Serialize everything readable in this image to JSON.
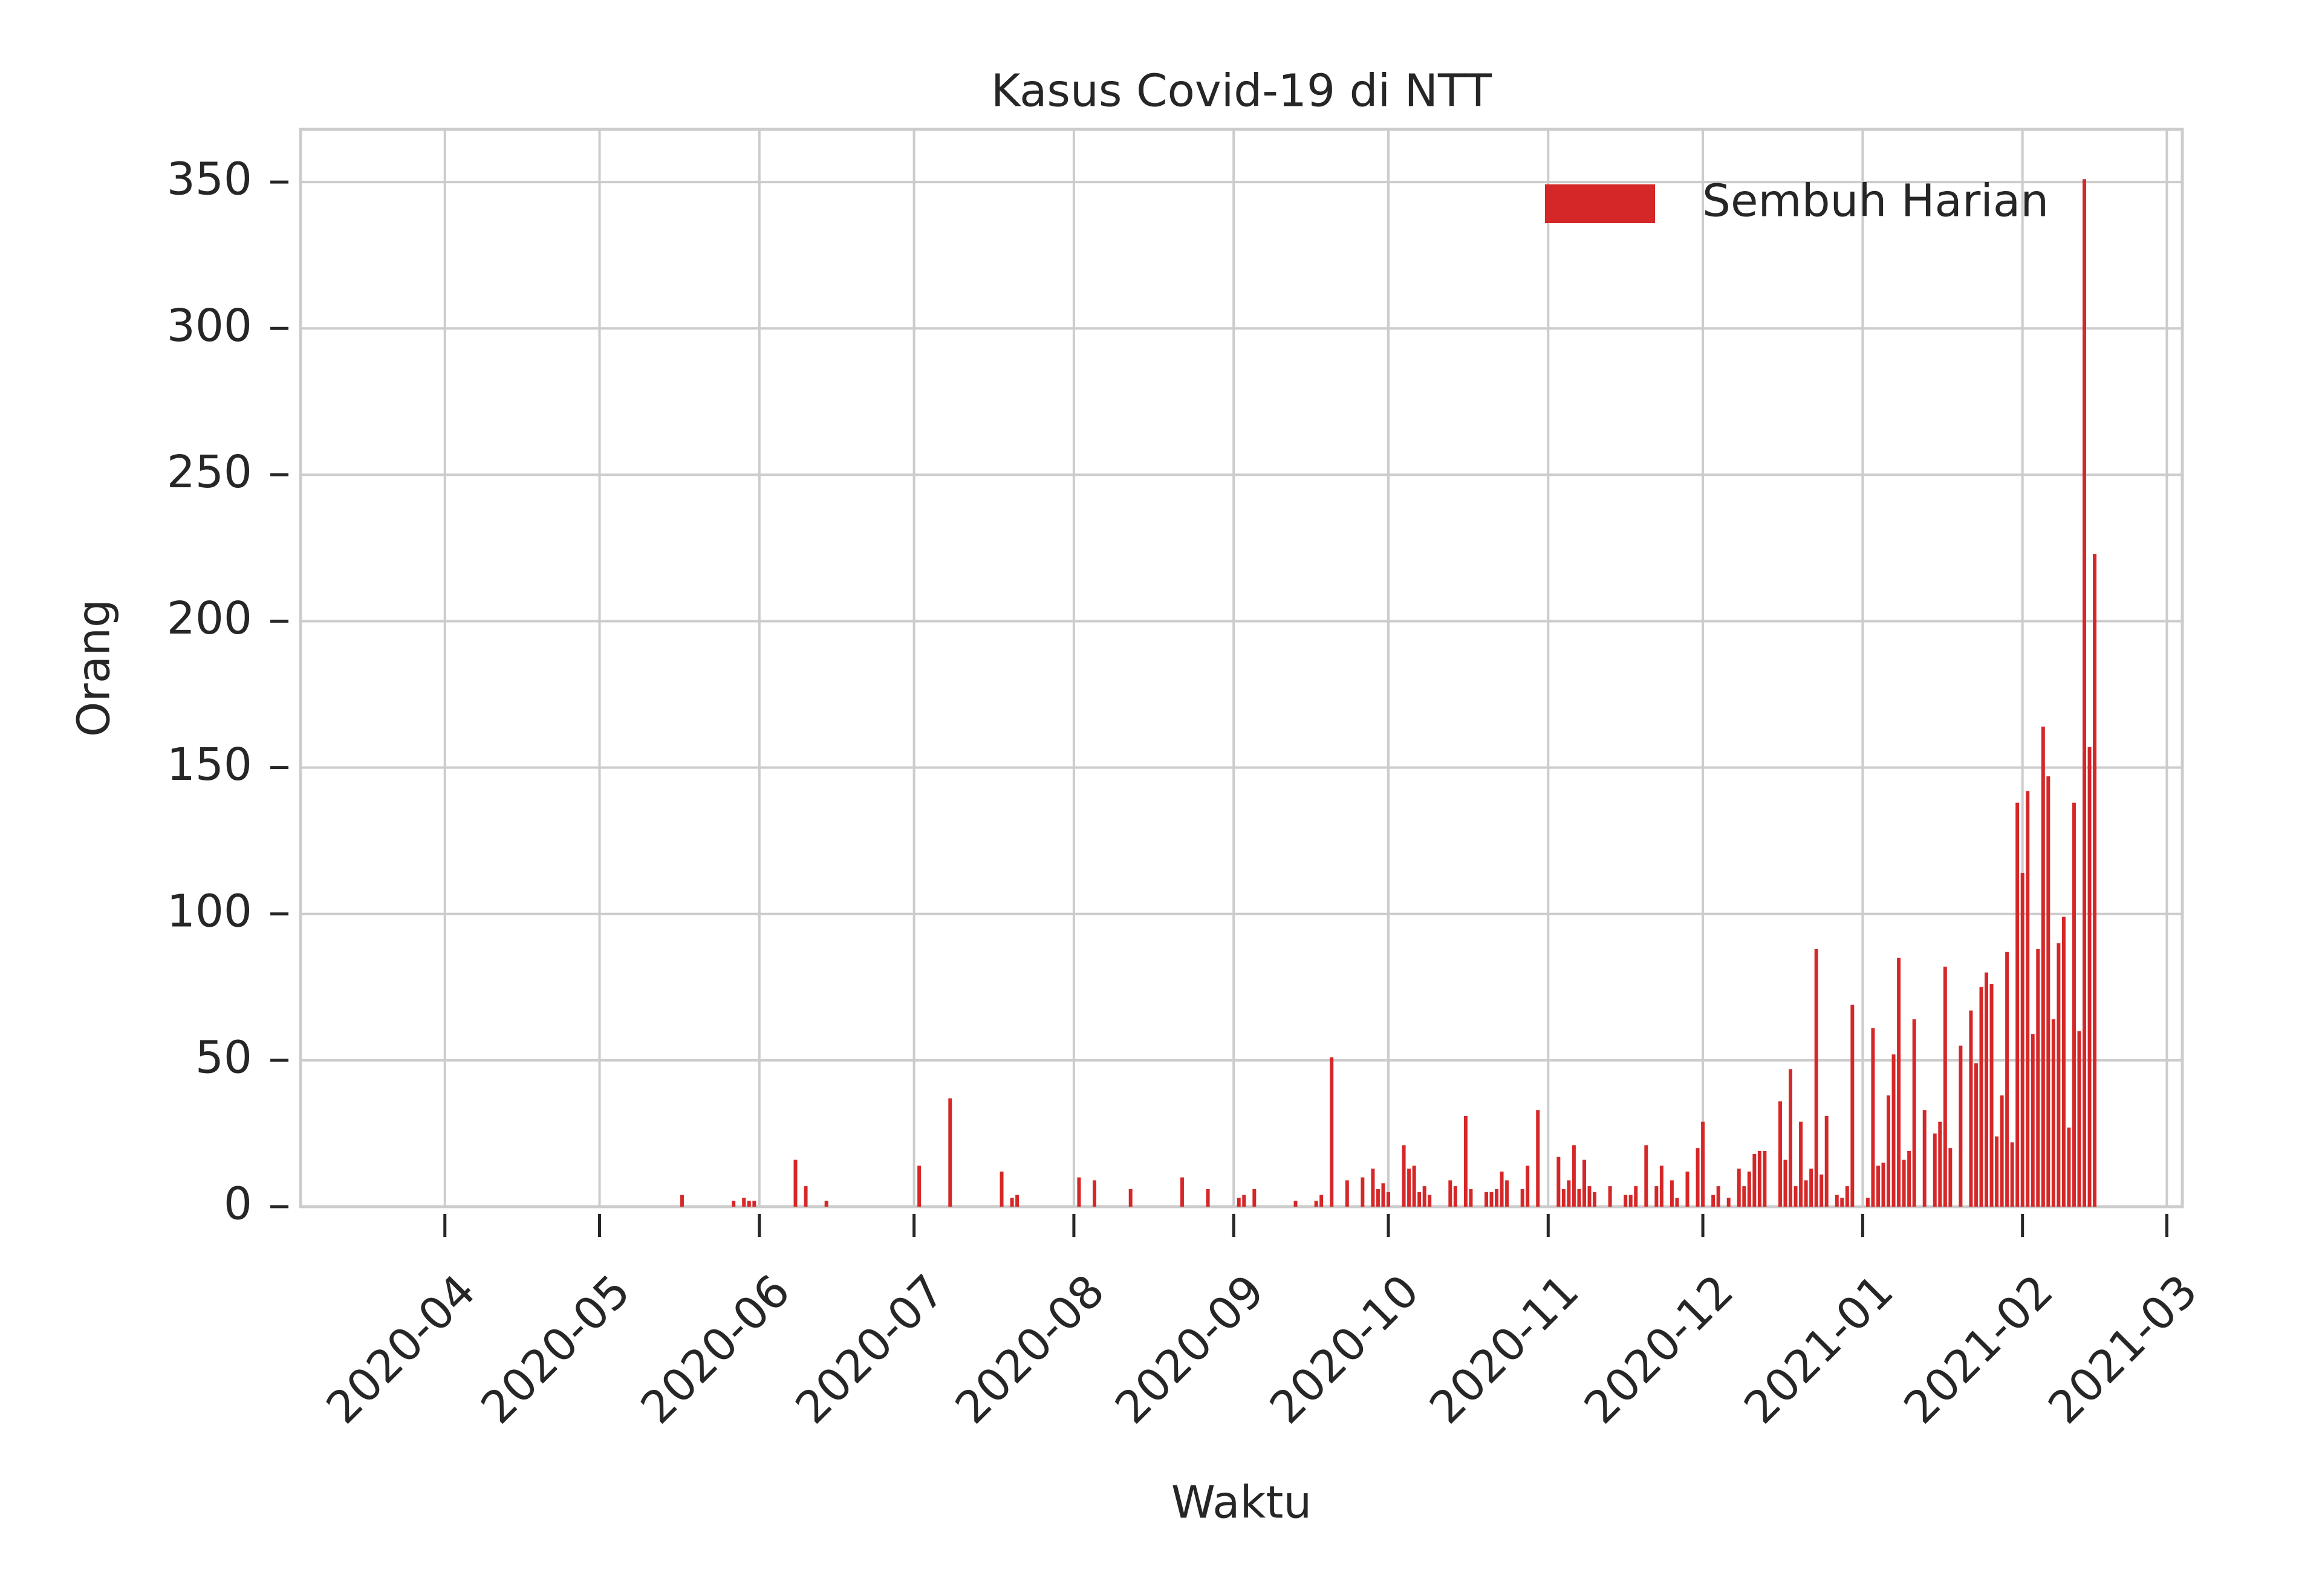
{
  "chart_data": {
    "type": "bar",
    "title": "Kasus Covid-19 di NTT",
    "xlabel": "Waktu",
    "ylabel": "Orang",
    "series": [
      {
        "name": "Sembuh Harian",
        "color": "#d62728",
        "x": [
          "2020-05-17",
          "2020-05-27",
          "2020-05-29",
          "2020-05-30",
          "2020-05-31",
          "2020-06-08",
          "2020-06-10",
          "2020-06-14",
          "2020-07-02",
          "2020-07-08",
          "2020-07-18",
          "2020-07-20",
          "2020-07-21",
          "2020-08-02",
          "2020-08-05",
          "2020-08-12",
          "2020-08-22",
          "2020-08-27",
          "2020-09-02",
          "2020-09-03",
          "2020-09-05",
          "2020-09-13",
          "2020-09-17",
          "2020-09-18",
          "2020-09-20",
          "2020-09-23",
          "2020-09-26",
          "2020-09-28",
          "2020-09-29",
          "2020-09-30",
          "2020-10-01",
          "2020-10-04",
          "2020-10-05",
          "2020-10-06",
          "2020-10-07",
          "2020-10-08",
          "2020-10-09",
          "2020-10-13",
          "2020-10-14",
          "2020-10-16",
          "2020-10-17",
          "2020-10-20",
          "2020-10-21",
          "2020-10-22",
          "2020-10-23",
          "2020-10-24",
          "2020-10-27",
          "2020-10-28",
          "2020-10-30",
          "2020-11-03",
          "2020-11-04",
          "2020-11-05",
          "2020-11-06",
          "2020-11-07",
          "2020-11-08",
          "2020-11-09",
          "2020-11-10",
          "2020-11-13",
          "2020-11-16",
          "2020-11-17",
          "2020-11-18",
          "2020-11-20",
          "2020-11-22",
          "2020-11-23",
          "2020-11-25",
          "2020-11-26",
          "2020-11-28",
          "2020-11-30",
          "2020-12-01",
          "2020-12-03",
          "2020-12-04",
          "2020-12-06",
          "2020-12-08",
          "2020-12-09",
          "2020-12-10",
          "2020-12-11",
          "2020-12-12",
          "2020-12-13",
          "2020-12-16",
          "2020-12-17",
          "2020-12-18",
          "2020-12-19",
          "2020-12-20",
          "2020-12-21",
          "2020-12-22",
          "2020-12-23",
          "2020-12-24",
          "2020-12-25",
          "2020-12-27",
          "2020-12-28",
          "2020-12-29",
          "2020-12-30",
          "2021-01-02",
          "2021-01-03",
          "2021-01-04",
          "2021-01-05",
          "2021-01-06",
          "2021-01-07",
          "2021-01-08",
          "2021-01-09",
          "2021-01-10",
          "2021-01-11",
          "2021-01-13",
          "2021-01-15",
          "2021-01-16",
          "2021-01-17",
          "2021-01-18",
          "2021-01-20",
          "2021-01-22",
          "2021-01-23",
          "2021-01-24",
          "2021-01-25",
          "2021-01-26",
          "2021-01-27",
          "2021-01-28",
          "2021-01-29",
          "2021-01-30",
          "2021-01-31",
          "2021-02-01",
          "2021-02-02",
          "2021-02-03",
          "2021-02-04",
          "2021-02-05",
          "2021-02-06",
          "2021-02-07",
          "2021-02-08",
          "2021-02-09",
          "2021-02-10",
          "2021-02-11",
          "2021-02-12",
          "2021-02-13",
          "2021-02-14",
          "2021-02-15"
        ],
        "values": [
          4,
          2,
          3,
          2,
          2,
          16,
          7,
          2,
          14,
          37,
          12,
          3,
          4,
          10,
          9,
          6,
          10,
          6,
          3,
          4,
          6,
          2,
          2,
          4,
          51,
          9,
          10,
          13,
          6,
          8,
          5,
          21,
          13,
          14,
          5,
          7,
          4,
          9,
          7,
          31,
          6,
          5,
          5,
          6,
          12,
          9,
          6,
          14,
          33,
          17,
          6,
          9,
          21,
          6,
          16,
          7,
          5,
          7,
          4,
          4,
          7,
          21,
          7,
          14,
          9,
          3,
          12,
          20,
          29,
          4,
          7,
          3,
          13,
          7,
          12,
          18,
          19,
          19,
          36,
          16,
          47,
          7,
          29,
          9,
          13,
          88,
          11,
          31,
          4,
          3,
          7,
          69,
          3,
          61,
          14,
          15,
          38,
          52,
          85,
          16,
          19,
          64,
          33,
          25,
          29,
          82,
          20,
          55,
          67,
          49,
          75,
          80,
          76,
          24,
          38,
          87,
          22,
          138,
          114,
          142,
          59,
          88,
          164,
          147,
          64,
          90,
          99,
          27,
          138,
          60,
          351,
          157,
          223
        ]
      }
    ],
    "xlim": [
      "2020-03-04",
      "2021-03-04"
    ],
    "xticks": [
      "2020-04",
      "2020-05",
      "2020-06",
      "2020-07",
      "2020-08",
      "2020-09",
      "2020-10",
      "2020-11",
      "2020-12",
      "2021-01",
      "2021-02",
      "2021-03"
    ],
    "ylim": [
      0,
      368
    ],
    "yticks": [
      0,
      50,
      100,
      150,
      200,
      250,
      300,
      350
    ],
    "grid": true,
    "legend": "upper right"
  }
}
